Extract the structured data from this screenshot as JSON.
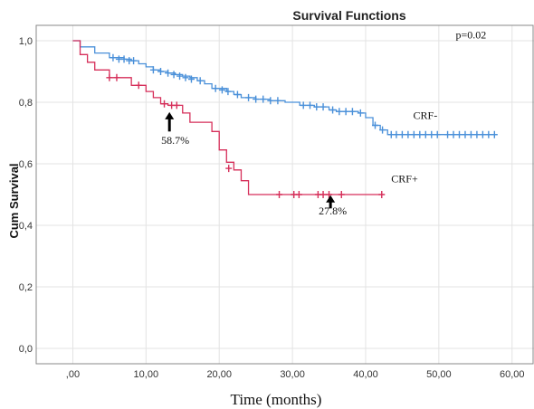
{
  "chart_data": {
    "type": "line",
    "title": "Survival Functions",
    "xlabel": "Time (months)",
    "ylabel": "Cum Survival",
    "xlim": [
      -5,
      63
    ],
    "ylim": [
      -0.05,
      1.05
    ],
    "x_ticks": [
      0,
      10,
      20,
      30,
      40,
      50,
      60
    ],
    "x_tick_labels": [
      ",00",
      "10,00",
      "20,00",
      "30,00",
      "40,00",
      "50,00",
      "60,00"
    ],
    "y_ticks": [
      0,
      0.2,
      0.4,
      0.6,
      0.8,
      1.0
    ],
    "y_tick_labels": [
      "0,0",
      "0,2",
      "0,4",
      "0,6",
      "0,8",
      "1,0"
    ],
    "grid": true,
    "step": true,
    "series": [
      {
        "name": "CRF-",
        "color": "#4a90d9",
        "steps": [
          [
            0,
            1.0
          ],
          [
            1,
            0.98
          ],
          [
            3,
            0.96
          ],
          [
            5,
            0.945
          ],
          [
            7,
            0.94
          ],
          [
            8,
            0.935
          ],
          [
            9,
            0.925
          ],
          [
            10,
            0.915
          ],
          [
            11,
            0.905
          ],
          [
            12,
            0.9
          ],
          [
            13,
            0.895
          ],
          [
            14,
            0.89
          ],
          [
            15,
            0.885
          ],
          [
            16,
            0.88
          ],
          [
            17,
            0.87
          ],
          [
            18,
            0.86
          ],
          [
            19,
            0.845
          ],
          [
            21,
            0.835
          ],
          [
            22,
            0.825
          ],
          [
            23,
            0.815
          ],
          [
            25,
            0.81
          ],
          [
            27,
            0.805
          ],
          [
            29,
            0.8
          ],
          [
            31,
            0.79
          ],
          [
            33,
            0.785
          ],
          [
            35,
            0.775
          ],
          [
            36,
            0.77
          ],
          [
            39,
            0.765
          ],
          [
            40,
            0.75
          ],
          [
            41,
            0.725
          ],
          [
            42,
            0.71
          ],
          [
            43,
            0.695
          ],
          [
            58,
            0.695
          ]
        ],
        "censored": [
          [
            5.5,
            0.945
          ],
          [
            6.3,
            0.94
          ],
          [
            7,
            0.94
          ],
          [
            7.7,
            0.935
          ],
          [
            8.3,
            0.935
          ],
          [
            11,
            0.905
          ],
          [
            12,
            0.9
          ],
          [
            13,
            0.895
          ],
          [
            13.8,
            0.89
          ],
          [
            14.6,
            0.885
          ],
          [
            15.4,
            0.88
          ],
          [
            16.2,
            0.875
          ],
          [
            17.4,
            0.87
          ],
          [
            19.5,
            0.845
          ],
          [
            20.4,
            0.84
          ],
          [
            21.2,
            0.835
          ],
          [
            22.5,
            0.825
          ],
          [
            24,
            0.815
          ],
          [
            25,
            0.81
          ],
          [
            26,
            0.81
          ],
          [
            27,
            0.805
          ],
          [
            28,
            0.805
          ],
          [
            31.5,
            0.79
          ],
          [
            32.4,
            0.79
          ],
          [
            33.3,
            0.785
          ],
          [
            34.2,
            0.785
          ],
          [
            35.5,
            0.775
          ],
          [
            36.4,
            0.77
          ],
          [
            37.3,
            0.77
          ],
          [
            38.2,
            0.77
          ],
          [
            39.3,
            0.765
          ],
          [
            41.3,
            0.725
          ],
          [
            42.3,
            0.71
          ],
          [
            43.5,
            0.695
          ],
          [
            44.2,
            0.695
          ],
          [
            45,
            0.695
          ],
          [
            45.8,
            0.695
          ],
          [
            46.6,
            0.695
          ],
          [
            47.4,
            0.695
          ],
          [
            48.2,
            0.695
          ],
          [
            49,
            0.695
          ],
          [
            49.8,
            0.695
          ],
          [
            51.2,
            0.695
          ],
          [
            52,
            0.695
          ],
          [
            52.8,
            0.695
          ],
          [
            53.6,
            0.695
          ],
          [
            54.4,
            0.695
          ],
          [
            55.2,
            0.695
          ],
          [
            56,
            0.695
          ],
          [
            56.8,
            0.695
          ],
          [
            57.6,
            0.695
          ]
        ]
      },
      {
        "name": "CRF+",
        "color": "#d62f5a",
        "steps": [
          [
            0,
            1.0
          ],
          [
            1,
            0.955
          ],
          [
            2,
            0.93
          ],
          [
            3,
            0.905
          ],
          [
            5,
            0.88
          ],
          [
            8,
            0.855
          ],
          [
            10,
            0.835
          ],
          [
            11,
            0.815
          ],
          [
            12,
            0.795
          ],
          [
            13,
            0.79
          ],
          [
            15,
            0.765
          ],
          [
            16,
            0.735
          ],
          [
            19,
            0.705
          ],
          [
            20,
            0.645
          ],
          [
            21,
            0.605
          ],
          [
            22,
            0.58
          ],
          [
            23,
            0.545
          ],
          [
            24,
            0.5
          ],
          [
            42,
            0.5
          ]
        ],
        "censored": [
          [
            5,
            0.88
          ],
          [
            6,
            0.88
          ],
          [
            9,
            0.855
          ],
          [
            12.5,
            0.795
          ],
          [
            13.5,
            0.79
          ],
          [
            14.2,
            0.79
          ],
          [
            21.3,
            0.585
          ],
          [
            28.2,
            0.5
          ],
          [
            30.2,
            0.5
          ],
          [
            30.9,
            0.5
          ],
          [
            33.5,
            0.5
          ],
          [
            34.2,
            0.5
          ],
          [
            35,
            0.5
          ],
          [
            36.7,
            0.5
          ],
          [
            42.2,
            0.5
          ]
        ]
      }
    ],
    "annotations": [
      {
        "text": "p=0.02",
        "x": 52.3,
        "y": 1.008,
        "arrow": false
      },
      {
        "text": "CRF-",
        "x": 46.5,
        "y": 0.745,
        "arrow": false
      },
      {
        "text": "CRF+",
        "x": 43.5,
        "y": 0.54,
        "arrow": false
      },
      {
        "text": "58.7%",
        "x": 14.0,
        "y": 0.665,
        "arrow": true,
        "arrow_x": 13.2,
        "arrow_from": 0.705,
        "arrow_to": 0.765
      },
      {
        "text": "27.8%",
        "x": 35.5,
        "y": 0.435,
        "arrow": true,
        "arrow_x": 35.2,
        "arrow_from": 0.455,
        "arrow_to": 0.495
      }
    ]
  }
}
